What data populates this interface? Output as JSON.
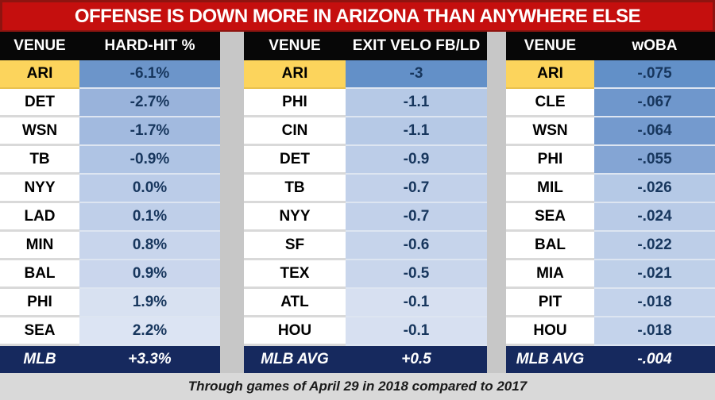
{
  "banner": {
    "text": "OFFENSE IS DOWN MORE IN ARIZONA THAN ANYWHERE ELSE",
    "bg_color": "#c50f0e",
    "border_color": "#8e1410"
  },
  "caption": "Through games of April 29 in 2018 compared to 2017",
  "colors": {
    "highlight_yellow": "#fcd45c",
    "summary_navy": "#16295e",
    "header_black": "#070707",
    "value_text_navy": "#17365d",
    "page_gray": "#d9d9d9",
    "divider_gray": "#c7c7c7"
  },
  "chart_data": [
    {
      "type": "table",
      "title": "HARD-HIT %",
      "columns": [
        "VENUE",
        "HARD-HIT %"
      ],
      "rows": [
        {
          "venue": "ARI",
          "value": "-6.1%",
          "value_bg": "#6c95ca",
          "highlight": true
        },
        {
          "venue": "DET",
          "value": "-2.7%",
          "value_bg": "#99b3db"
        },
        {
          "venue": "WSN",
          "value": "-1.7%",
          "value_bg": "#a2badf"
        },
        {
          "venue": "TB",
          "value": "-0.9%",
          "value_bg": "#afc4e4"
        },
        {
          "venue": "NYY",
          "value": "0.0%",
          "value_bg": "#bbcce8"
        },
        {
          "venue": "LAD",
          "value": "0.1%",
          "value_bg": "#bfcfe9"
        },
        {
          "venue": "MIN",
          "value": "0.8%",
          "value_bg": "#c8d5ec"
        },
        {
          "venue": "BAL",
          "value": "0.9%",
          "value_bg": "#cad6ed"
        },
        {
          "venue": "PHI",
          "value": "1.9%",
          "value_bg": "#d8e1f1"
        },
        {
          "venue": "SEA",
          "value": "2.2%",
          "value_bg": "#dce4f3"
        }
      ],
      "summary": {
        "venue": "MLB",
        "value": "+3.3%"
      }
    },
    {
      "type": "table",
      "title": "EXIT VELO FB/LD",
      "columns": [
        "VENUE",
        "EXIT VELO FB/LD"
      ],
      "rows": [
        {
          "venue": "ARI",
          "value": "-3",
          "value_bg": "#6390c8",
          "highlight": true
        },
        {
          "venue": "PHI",
          "value": "-1.1",
          "value_bg": "#b6c9e6"
        },
        {
          "venue": "CIN",
          "value": "-1.1",
          "value_bg": "#b6c9e6"
        },
        {
          "venue": "DET",
          "value": "-0.9",
          "value_bg": "#bccde8"
        },
        {
          "venue": "TB",
          "value": "-0.7",
          "value_bg": "#c2d1ea"
        },
        {
          "venue": "NYY",
          "value": "-0.7",
          "value_bg": "#c2d1ea"
        },
        {
          "venue": "SF",
          "value": "-0.6",
          "value_bg": "#c6d4eb"
        },
        {
          "venue": "TEX",
          "value": "-0.5",
          "value_bg": "#c9d6ec"
        },
        {
          "venue": "ATL",
          "value": "-0.1",
          "value_bg": "#d7e0f1"
        },
        {
          "venue": "HOU",
          "value": "-0.1",
          "value_bg": "#d7e0f1"
        }
      ],
      "summary": {
        "venue": "MLB AVG",
        "value": "+0.5"
      }
    },
    {
      "type": "table",
      "title": "wOBA",
      "columns": [
        "VENUE",
        "wOBA"
      ],
      "rows": [
        {
          "venue": "ARI",
          "value": "-.075",
          "value_bg": "#6290c8",
          "highlight": true
        },
        {
          "venue": "CLE",
          "value": "-.067",
          "value_bg": "#6f97cc"
        },
        {
          "venue": "WSN",
          "value": "-.064",
          "value_bg": "#749ace"
        },
        {
          "venue": "PHI",
          "value": "-.055",
          "value_bg": "#84a5d4"
        },
        {
          "venue": "MIL",
          "value": "-.026",
          "value_bg": "#b5c9e6"
        },
        {
          "venue": "SEA",
          "value": "-.024",
          "value_bg": "#b9cbe7"
        },
        {
          "venue": "BAL",
          "value": "-.022",
          "value_bg": "#bdcee8"
        },
        {
          "venue": "MIA",
          "value": "-.021",
          "value_bg": "#bfd0e9"
        },
        {
          "venue": "PIT",
          "value": "-.018",
          "value_bg": "#c4d3eb"
        },
        {
          "venue": "HOU",
          "value": "-.018",
          "value_bg": "#c4d3eb"
        }
      ],
      "summary": {
        "venue": "MLB AVG",
        "value": "-.004"
      }
    }
  ]
}
